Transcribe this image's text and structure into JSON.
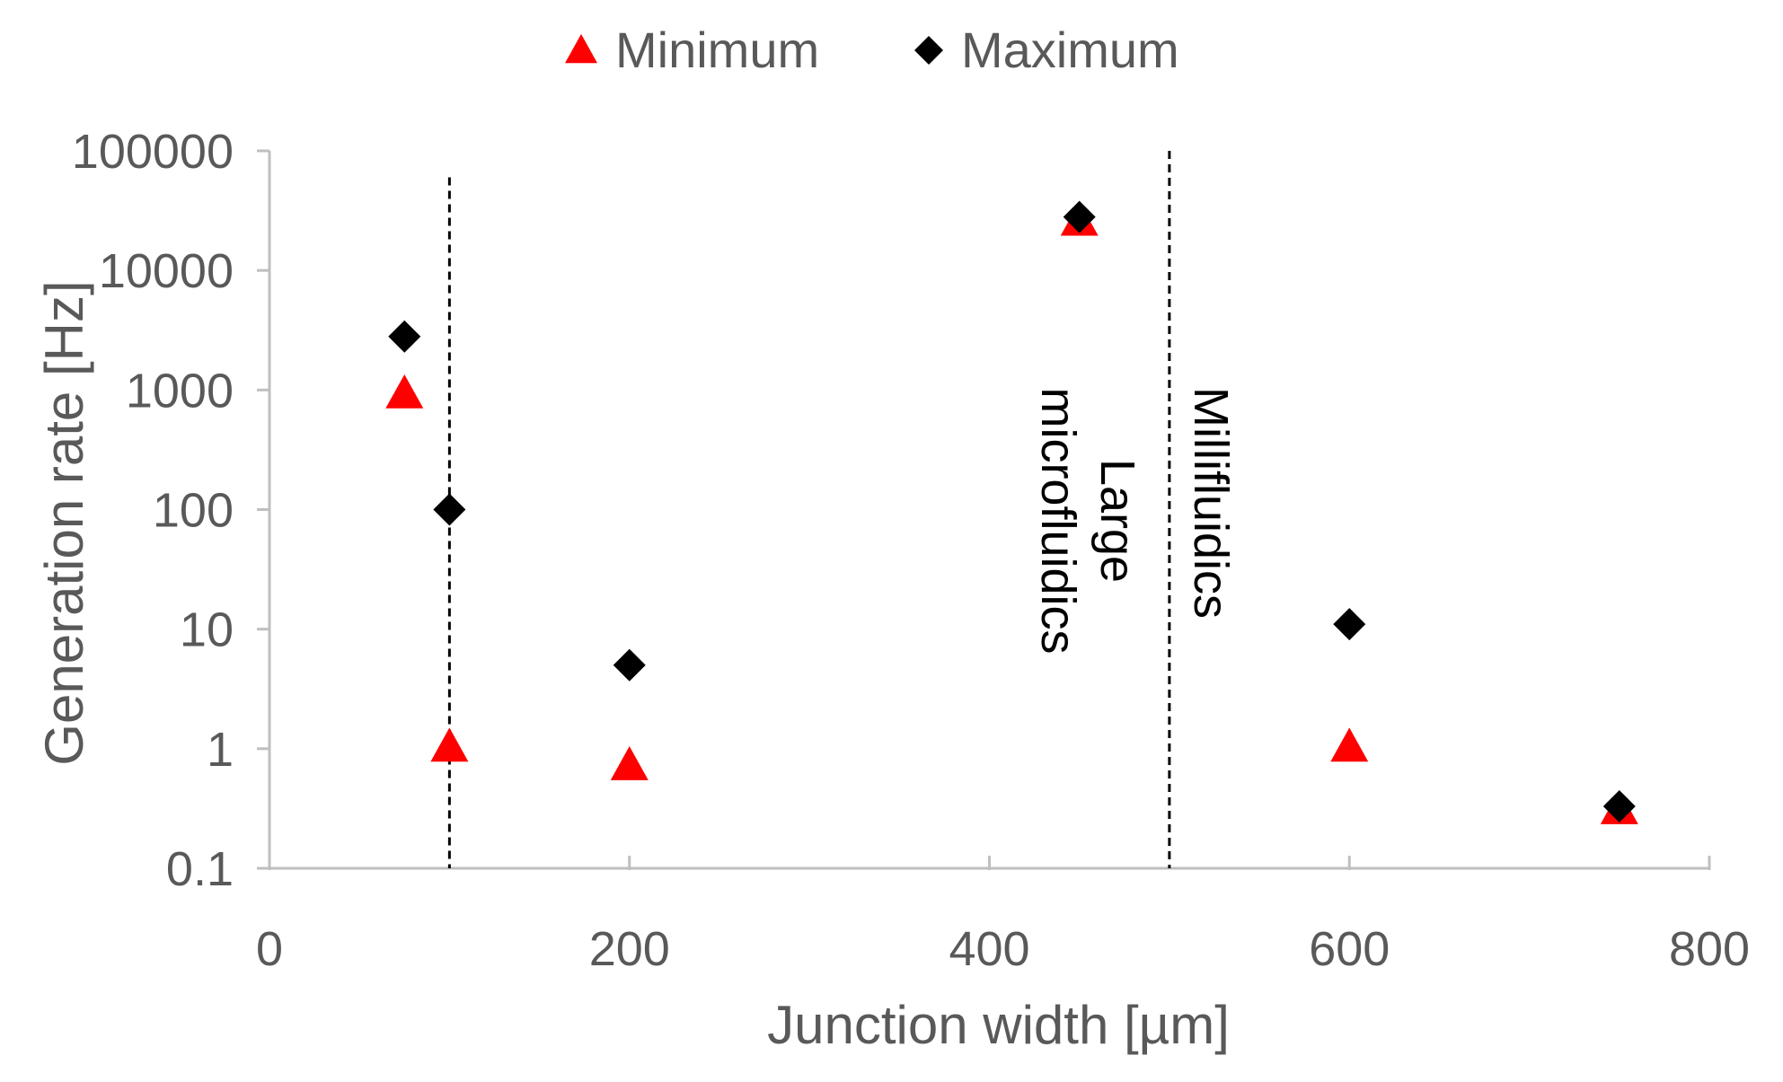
{
  "chart_data": {
    "type": "scatter",
    "xlabel": "Junction width [µm]",
    "ylabel": "Generation rate [Hz]",
    "xlim": [
      0,
      800
    ],
    "ylim": [
      0.1,
      100000
    ],
    "y_scale": "log",
    "x_ticks": [
      "0",
      "200",
      "400",
      "600",
      "800"
    ],
    "y_ticks": [
      "0.1",
      "1",
      "10",
      "100",
      "1000",
      "10000",
      "100000"
    ],
    "grid": false,
    "legend_position": "top",
    "series": [
      {
        "name": "Minimum",
        "marker": "triangle",
        "color": "#ff0000",
        "points": [
          {
            "x": 75,
            "y": 900
          },
          {
            "x": 100,
            "y": 1
          },
          {
            "x": 200,
            "y": 0.7
          },
          {
            "x": 450,
            "y": 25000
          },
          {
            "x": 600,
            "y": 1
          },
          {
            "x": 750,
            "y": 0.3
          }
        ]
      },
      {
        "name": "Maximum",
        "marker": "diamond",
        "color": "#000000",
        "points": [
          {
            "x": 75,
            "y": 2800
          },
          {
            "x": 100,
            "y": 100
          },
          {
            "x": 200,
            "y": 5
          },
          {
            "x": 450,
            "y": 28000
          },
          {
            "x": 600,
            "y": 11
          },
          {
            "x": 750,
            "y": 0.33
          }
        ]
      }
    ],
    "vlines": [
      {
        "x": 100,
        "y_top": 60000
      },
      {
        "x": 500,
        "y_top": 100000
      }
    ],
    "annotations": [
      {
        "lines": [
          "Large",
          "microfluidics"
        ],
        "x": 450,
        "y": 100
      },
      {
        "lines": [
          "Millifluidics"
        ],
        "x": 500,
        "y": 100
      }
    ]
  }
}
